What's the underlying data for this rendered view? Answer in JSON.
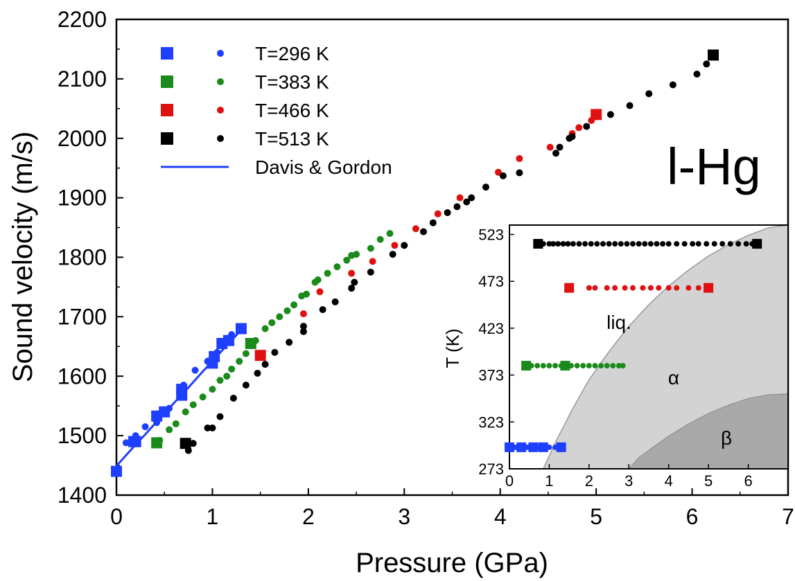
{
  "chart_data": [
    {
      "type": "scatter",
      "title": "",
      "annotation": "l-Hg",
      "xlabel": "Pressure (GPa)",
      "ylabel": "Sound velocity (m/s)",
      "xlim": [
        0,
        7
      ],
      "ylim": [
        1400,
        2200
      ],
      "xticks": [
        "0",
        "1",
        "2",
        "3",
        "4",
        "5",
        "6",
        "7"
      ],
      "yticks": [
        "1400",
        "1500",
        "1600",
        "1700",
        "1800",
        "1900",
        "2000",
        "2100",
        "2200"
      ],
      "legend_position": "top-left",
      "grid": false,
      "series": [
        {
          "name": "T=296 K",
          "color": "#1f3fff",
          "squares": [
            [
              0.0,
              1440
            ],
            [
              0.18,
              1490
            ],
            [
              0.2,
              1490
            ],
            [
              0.42,
              1533
            ],
            [
              0.5,
              1540
            ],
            [
              0.68,
              1568
            ],
            [
              0.68,
              1578
            ],
            [
              1.0,
              1622
            ],
            [
              1.02,
              1633
            ],
            [
              1.1,
              1655
            ],
            [
              1.17,
              1660
            ],
            [
              1.3,
              1680
            ]
          ],
          "circles": [
            [
              0.1,
              1488
            ],
            [
              0.2,
              1500
            ],
            [
              0.3,
              1515
            ],
            [
              0.42,
              1522
            ],
            [
              0.55,
              1546
            ],
            [
              0.7,
              1585
            ],
            [
              0.82,
              1610
            ],
            [
              0.95,
              1625
            ],
            [
              1.05,
              1640
            ],
            [
              1.12,
              1655
            ],
            [
              1.2,
              1670
            ]
          ]
        },
        {
          "name": "T=383 K",
          "color": "#1a8a1a",
          "squares": [
            [
              0.42,
              1488
            ],
            [
              1.4,
              1655
            ]
          ],
          "circles": [
            [
              0.45,
              1492
            ],
            [
              0.55,
              1510
            ],
            [
              0.62,
              1520
            ],
            [
              0.72,
              1540
            ],
            [
              0.8,
              1552
            ],
            [
              0.9,
              1565
            ],
            [
              1.0,
              1578
            ],
            [
              1.08,
              1593
            ],
            [
              1.15,
              1600
            ],
            [
              1.2,
              1612
            ],
            [
              1.28,
              1625
            ],
            [
              1.35,
              1638
            ],
            [
              1.45,
              1660
            ],
            [
              1.55,
              1680
            ],
            [
              1.62,
              1690
            ],
            [
              1.7,
              1700
            ],
            [
              1.78,
              1710
            ],
            [
              1.85,
              1720
            ],
            [
              1.93,
              1735
            ],
            [
              1.98,
              1738
            ],
            [
              2.07,
              1758
            ],
            [
              2.1,
              1762
            ],
            [
              2.2,
              1773
            ],
            [
              2.3,
              1784
            ],
            [
              2.4,
              1795
            ],
            [
              2.45,
              1803
            ],
            [
              2.5,
              1805
            ],
            [
              2.65,
              1815
            ],
            [
              2.75,
              1830
            ],
            [
              2.85,
              1840
            ]
          ]
        },
        {
          "name": "T=466 K",
          "color": "#e01010",
          "squares": [
            [
              1.5,
              1635
            ],
            [
              5.0,
              2040
            ]
          ],
          "circles": [
            [
              1.95,
              1705
            ],
            [
              2.12,
              1742
            ],
            [
              2.45,
              1773
            ],
            [
              2.67,
              1793
            ],
            [
              2.9,
              1820
            ],
            [
              3.12,
              1848
            ],
            [
              3.35,
              1873
            ],
            [
              3.58,
              1900
            ],
            [
              3.98,
              1943
            ],
            [
              4.2,
              1966
            ],
            [
              4.52,
              1985
            ],
            [
              4.75,
              2008
            ],
            [
              4.82,
              2018
            ],
            [
              4.95,
              2030
            ]
          ]
        },
        {
          "name": "T=513 K",
          "color": "#000000",
          "squares": [
            [
              0.72,
              1487
            ],
            [
              6.22,
              2140
            ]
          ],
          "circles": [
            [
              0.75,
              1475
            ],
            [
              0.8,
              1487
            ],
            [
              0.95,
              1513
            ],
            [
              1.0,
              1513
            ],
            [
              1.08,
              1532
            ],
            [
              1.22,
              1563
            ],
            [
              1.35,
              1585
            ],
            [
              1.47,
              1605
            ],
            [
              1.55,
              1620
            ],
            [
              1.65,
              1640
            ],
            [
              1.8,
              1657
            ],
            [
              1.95,
              1675
            ],
            [
              1.95,
              1684
            ],
            [
              2.15,
              1712
            ],
            [
              2.28,
              1725
            ],
            [
              2.45,
              1748
            ],
            [
              2.48,
              1758
            ],
            [
              2.65,
              1775
            ],
            [
              2.88,
              1805
            ],
            [
              3.0,
              1820
            ],
            [
              3.2,
              1843
            ],
            [
              3.3,
              1858
            ],
            [
              3.45,
              1875
            ],
            [
              3.55,
              1885
            ],
            [
              3.65,
              1893
            ],
            [
              3.7,
              1900
            ],
            [
              3.85,
              1918
            ],
            [
              4.03,
              1937
            ],
            [
              4.2,
              1942
            ],
            [
              4.58,
              1975
            ],
            [
              4.62,
              1985
            ],
            [
              4.72,
              2000
            ],
            [
              4.75,
              2003
            ],
            [
              4.9,
              2020
            ],
            [
              5.15,
              2040
            ],
            [
              5.35,
              2055
            ],
            [
              5.55,
              2075
            ],
            [
              5.8,
              2090
            ],
            [
              6.05,
              2108
            ],
            [
              6.15,
              2125
            ]
          ]
        }
      ],
      "fit_line": {
        "name": "Davis & Gordon",
        "color": "#1f3fff",
        "points": [
          [
            0.0,
            1449
          ],
          [
            0.1,
            1467
          ],
          [
            0.2,
            1485
          ],
          [
            0.3,
            1502
          ],
          [
            0.4,
            1520
          ],
          [
            0.5,
            1537
          ],
          [
            0.6,
            1555
          ],
          [
            0.7,
            1572
          ],
          [
            0.8,
            1590
          ],
          [
            0.9,
            1608
          ],
          [
            1.0,
            1625
          ],
          [
            1.1,
            1643
          ],
          [
            1.2,
            1660
          ],
          [
            1.3,
            1678
          ]
        ]
      }
    },
    {
      "type": "scatter",
      "title": "",
      "xlabel": "",
      "ylabel": "T (K)",
      "xlim": [
        0,
        7
      ],
      "ylim": [
        273,
        533
      ],
      "xticks": [
        "0",
        "1",
        "2",
        "3",
        "4",
        "5",
        "6"
      ],
      "yticks": [
        "273",
        "323",
        "373",
        "423",
        "473",
        "523"
      ],
      "region_labels": [
        "liq.",
        "α",
        "β"
      ],
      "series": [
        {
          "name": "T=296 K",
          "color": "#1f3fff",
          "y": 296,
          "squares": [
            0.0,
            0.3,
            0.6,
            0.85,
            1.3
          ],
          "circles": [
            0.15,
            0.45,
            0.75,
            1.0,
            1.15
          ]
        },
        {
          "name": "T=383 K",
          "color": "#1a8a1a",
          "y": 383,
          "squares": [
            0.42,
            1.4
          ],
          "circles": [
            0.55,
            0.7,
            0.85,
            1.0,
            1.15,
            1.3,
            1.55,
            1.7,
            1.85,
            2.0,
            2.15,
            2.3,
            2.45,
            2.6,
            2.75,
            2.85
          ]
        },
        {
          "name": "T=466 K",
          "color": "#e01010",
          "y": 466,
          "squares": [
            1.5,
            5.0
          ],
          "circles": [
            2.0,
            2.15,
            2.45,
            2.65,
            2.9,
            3.1,
            3.35,
            3.55,
            3.75,
            4.0,
            4.2,
            4.5,
            4.75
          ]
        },
        {
          "name": "T=513 K",
          "color": "#000000",
          "y": 513,
          "squares": [
            0.72,
            6.22
          ],
          "circles": [
            0.85,
            1.0,
            1.1,
            1.22,
            1.35,
            1.47,
            1.6,
            1.75,
            1.9,
            2.05,
            2.2,
            2.35,
            2.5,
            2.65,
            2.8,
            2.95,
            3.1,
            3.25,
            3.4,
            3.55,
            3.7,
            3.85,
            4.0,
            4.2,
            4.4,
            4.6,
            4.75,
            4.95,
            5.15,
            5.35,
            5.55,
            5.75,
            5.95,
            6.1
          ]
        }
      ],
      "alpha_region_color": "#d3d3d3",
      "beta_region_color": "#a9a9a9"
    }
  ]
}
